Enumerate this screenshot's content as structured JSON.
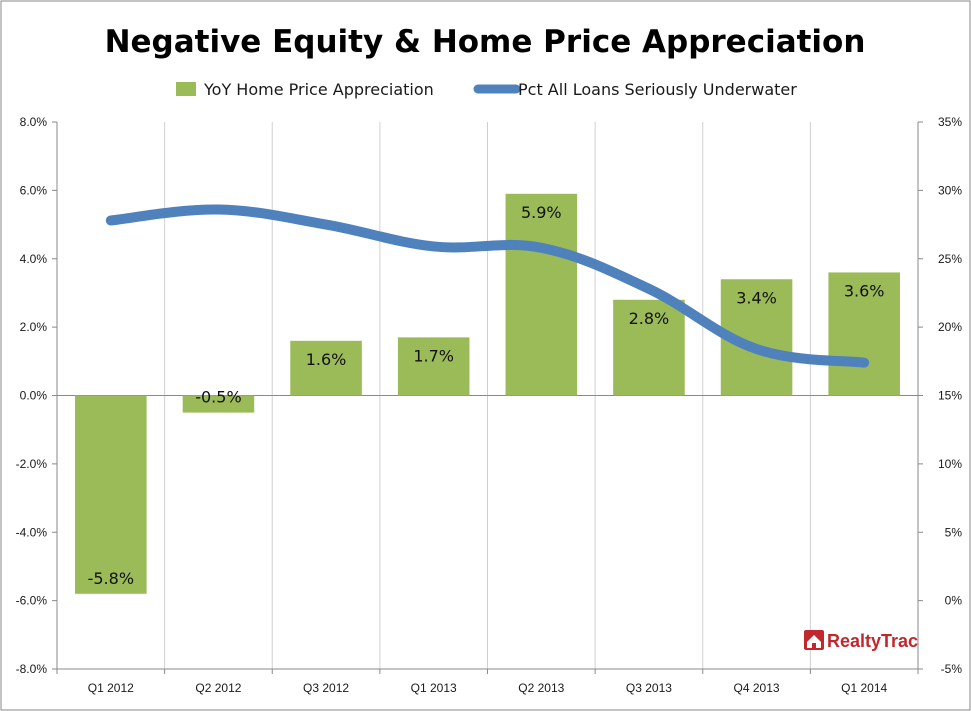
{
  "chart_data": {
    "type": "bar",
    "title": "Negative Equity & Home Price Appreciation",
    "categories": [
      "Q1 2012",
      "Q2 2012",
      "Q3 2012",
      "Q1 2013",
      "Q2 2013",
      "Q3 2013",
      "Q4 2013",
      "Q1 2014"
    ],
    "series": [
      {
        "name": "YoY Home Price Appreciation",
        "type": "bar",
        "axis": "left",
        "color": "#9bbb59",
        "values": [
          -5.8,
          -0.5,
          1.6,
          1.7,
          5.9,
          2.8,
          3.4,
          3.6
        ],
        "labels": [
          "-5.8%",
          "-0.5%",
          "1.6%",
          "1.7%",
          "5.9%",
          "2.8%",
          "3.4%",
          "3.6%"
        ]
      },
      {
        "name": "Pct All Loans Seriously Underwater",
        "type": "line",
        "axis": "right",
        "color": "#4f81bd",
        "values": [
          27.8,
          28.6,
          27.5,
          25.9,
          25.8,
          22.8,
          18.4,
          17.4
        ]
      }
    ],
    "y_left": {
      "min": -8,
      "max": 8,
      "step": 2,
      "tick_labels": [
        "-8.0%",
        "-6.0%",
        "-4.0%",
        "-2.0%",
        "0.0%",
        "2.0%",
        "4.0%",
        "6.0%",
        "8.0%"
      ]
    },
    "y_right": {
      "min": -5,
      "max": 35,
      "step": 5,
      "tick_labels": [
        "-5%",
        "0%",
        "5%",
        "10%",
        "15%",
        "20%",
        "25%",
        "30%",
        "35%"
      ]
    },
    "grid": "vertical",
    "legend_position": "top"
  },
  "brand": {
    "name": "RealtyTrac",
    "color": "#c0282d"
  }
}
